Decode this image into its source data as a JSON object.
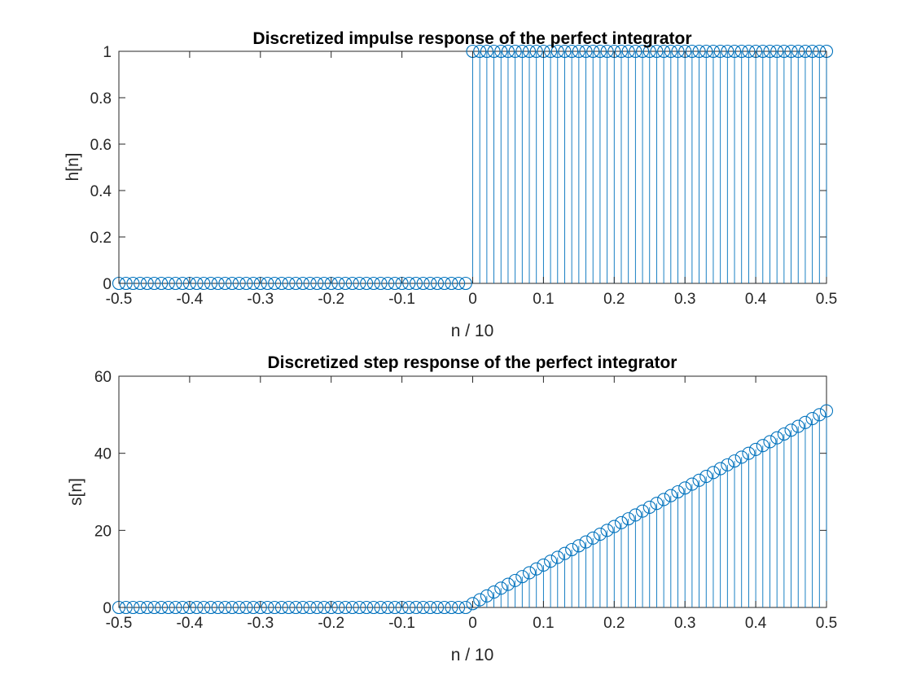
{
  "chart_data": [
    {
      "type": "stem",
      "title": "Discretized impulse response of the perfect integrator",
      "xlabel": "n / 10",
      "ylabel": "h[n]",
      "xlim": [
        -0.5,
        0.5
      ],
      "ylim": [
        0,
        1
      ],
      "xticks": [
        -0.5,
        -0.4,
        -0.3,
        -0.2,
        -0.1,
        0,
        0.1,
        0.2,
        0.3,
        0.4,
        0.5
      ],
      "xtick_labels": [
        "-0.5",
        "-0.4",
        "-0.3",
        "-0.2",
        "-0.1",
        "0",
        "0.1",
        "0.2",
        "0.3",
        "0.4",
        "0.5"
      ],
      "yticks": [
        0,
        0.2,
        0.4,
        0.6,
        0.8,
        1
      ],
      "ytick_labels": [
        "0",
        "0.2",
        "0.4",
        "0.6",
        "0.8",
        "1"
      ],
      "x": [
        -0.5,
        -0.49,
        -0.48,
        -0.47,
        -0.46,
        -0.45,
        -0.44,
        -0.43,
        -0.42,
        -0.41,
        -0.4,
        -0.39,
        -0.38,
        -0.37,
        -0.36,
        -0.35,
        -0.34,
        -0.33,
        -0.32,
        -0.31,
        -0.3,
        -0.29,
        -0.28,
        -0.27,
        -0.26,
        -0.25,
        -0.24,
        -0.23,
        -0.22,
        -0.21,
        -0.2,
        -0.19,
        -0.18,
        -0.17,
        -0.16,
        -0.15,
        -0.14,
        -0.13,
        -0.12,
        -0.11,
        -0.1,
        -0.09,
        -0.08,
        -0.07,
        -0.06,
        -0.05,
        -0.04,
        -0.03,
        -0.02,
        -0.01,
        0,
        0.01,
        0.02,
        0.03,
        0.04,
        0.05,
        0.06,
        0.07,
        0.08,
        0.09,
        0.1,
        0.11,
        0.12,
        0.13,
        0.14,
        0.15,
        0.16,
        0.17,
        0.18,
        0.19,
        0.2,
        0.21,
        0.22,
        0.23,
        0.24,
        0.25,
        0.26,
        0.27,
        0.28,
        0.29,
        0.3,
        0.31,
        0.32,
        0.33,
        0.34,
        0.35,
        0.36,
        0.37,
        0.38,
        0.39,
        0.4,
        0.41,
        0.42,
        0.43,
        0.44,
        0.45,
        0.46,
        0.47,
        0.48,
        0.49,
        0.5
      ],
      "y": [
        0,
        0,
        0,
        0,
        0,
        0,
        0,
        0,
        0,
        0,
        0,
        0,
        0,
        0,
        0,
        0,
        0,
        0,
        0,
        0,
        0,
        0,
        0,
        0,
        0,
        0,
        0,
        0,
        0,
        0,
        0,
        0,
        0,
        0,
        0,
        0,
        0,
        0,
        0,
        0,
        0,
        0,
        0,
        0,
        0,
        0,
        0,
        0,
        0,
        0,
        1,
        1,
        1,
        1,
        1,
        1,
        1,
        1,
        1,
        1,
        1,
        1,
        1,
        1,
        1,
        1,
        1,
        1,
        1,
        1,
        1,
        1,
        1,
        1,
        1,
        1,
        1,
        1,
        1,
        1,
        1,
        1,
        1,
        1,
        1,
        1,
        1,
        1,
        1,
        1,
        1,
        1,
        1,
        1,
        1,
        1,
        1,
        1,
        1,
        1,
        1
      ],
      "color": "#0072bd",
      "marker": "open-circle",
      "grid": false,
      "legend": "none"
    },
    {
      "type": "stem",
      "title": "Discretized step response of the perfect integrator",
      "xlabel": "n / 10",
      "ylabel": "s[n]",
      "xlim": [
        -0.5,
        0.5
      ],
      "ylim": [
        0,
        60
      ],
      "xticks": [
        -0.5,
        -0.4,
        -0.3,
        -0.2,
        -0.1,
        0,
        0.1,
        0.2,
        0.3,
        0.4,
        0.5
      ],
      "xtick_labels": [
        "-0.5",
        "-0.4",
        "-0.3",
        "-0.2",
        "-0.1",
        "0",
        "0.1",
        "0.2",
        "0.3",
        "0.4",
        "0.5"
      ],
      "yticks": [
        0,
        20,
        40,
        60
      ],
      "ytick_labels": [
        "0",
        "20",
        "40",
        "60"
      ],
      "x": [
        -0.5,
        -0.49,
        -0.48,
        -0.47,
        -0.46,
        -0.45,
        -0.44,
        -0.43,
        -0.42,
        -0.41,
        -0.4,
        -0.39,
        -0.38,
        -0.37,
        -0.36,
        -0.35,
        -0.34,
        -0.33,
        -0.32,
        -0.31,
        -0.3,
        -0.29,
        -0.28,
        -0.27,
        -0.26,
        -0.25,
        -0.24,
        -0.23,
        -0.22,
        -0.21,
        -0.2,
        -0.19,
        -0.18,
        -0.17,
        -0.16,
        -0.15,
        -0.14,
        -0.13,
        -0.12,
        -0.11,
        -0.1,
        -0.09,
        -0.08,
        -0.07,
        -0.06,
        -0.05,
        -0.04,
        -0.03,
        -0.02,
        -0.01,
        0,
        0.01,
        0.02,
        0.03,
        0.04,
        0.05,
        0.06,
        0.07,
        0.08,
        0.09,
        0.1,
        0.11,
        0.12,
        0.13,
        0.14,
        0.15,
        0.16,
        0.17,
        0.18,
        0.19,
        0.2,
        0.21,
        0.22,
        0.23,
        0.24,
        0.25,
        0.26,
        0.27,
        0.28,
        0.29,
        0.3,
        0.31,
        0.32,
        0.33,
        0.34,
        0.35,
        0.36,
        0.37,
        0.38,
        0.39,
        0.4,
        0.41,
        0.42,
        0.43,
        0.44,
        0.45,
        0.46,
        0.47,
        0.48,
        0.49,
        0.5
      ],
      "y": [
        0,
        0,
        0,
        0,
        0,
        0,
        0,
        0,
        0,
        0,
        0,
        0,
        0,
        0,
        0,
        0,
        0,
        0,
        0,
        0,
        0,
        0,
        0,
        0,
        0,
        0,
        0,
        0,
        0,
        0,
        0,
        0,
        0,
        0,
        0,
        0,
        0,
        0,
        0,
        0,
        0,
        0,
        0,
        0,
        0,
        0,
        0,
        0,
        0,
        0,
        1,
        2,
        3,
        4,
        5,
        6,
        7,
        8,
        9,
        10,
        11,
        12,
        13,
        14,
        15,
        16,
        17,
        18,
        19,
        20,
        21,
        22,
        23,
        24,
        25,
        26,
        27,
        28,
        29,
        30,
        31,
        32,
        33,
        34,
        35,
        36,
        37,
        38,
        39,
        40,
        41,
        42,
        43,
        44,
        45,
        46,
        47,
        48,
        49,
        50,
        51
      ],
      "color": "#0072bd",
      "marker": "open-circle",
      "grid": false,
      "legend": "none"
    }
  ]
}
